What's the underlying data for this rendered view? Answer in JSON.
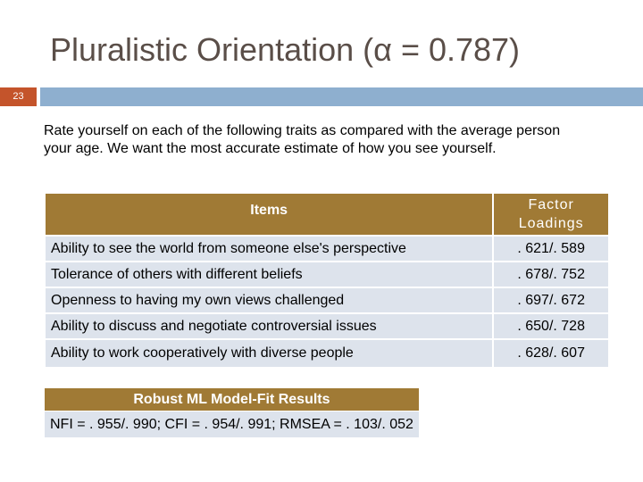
{
  "slide": {
    "title": "Pluralistic Orientation (α = 0.787)",
    "number": "23",
    "intro": "Rate yourself on each of the following traits as compared with the average person your age.  We want the most accurate estimate of how you see yourself."
  },
  "items_table": {
    "header_items": "Items",
    "header_loadings_line1": "Factor",
    "header_loadings_line2": "Loadings",
    "rows": [
      {
        "item": "Ability to see the world from someone else's perspective",
        "loading": ". 621/. 589"
      },
      {
        "item": "Tolerance of others with different beliefs",
        "loading": ". 678/. 752"
      },
      {
        "item": "Openness to having my own views challenged",
        "loading": ". 697/. 672"
      },
      {
        "item": "Ability to discuss and negotiate controversial issues",
        "loading": ". 650/. 728"
      },
      {
        "item": "Ability to work cooperatively with diverse people",
        "loading": ". 628/. 607"
      }
    ]
  },
  "fit_table": {
    "header": "Robust ML Model-Fit Results",
    "value": "NFI = . 955/. 990; CFI = . 954/. 991; RMSEA = . 103/. 052"
  }
}
